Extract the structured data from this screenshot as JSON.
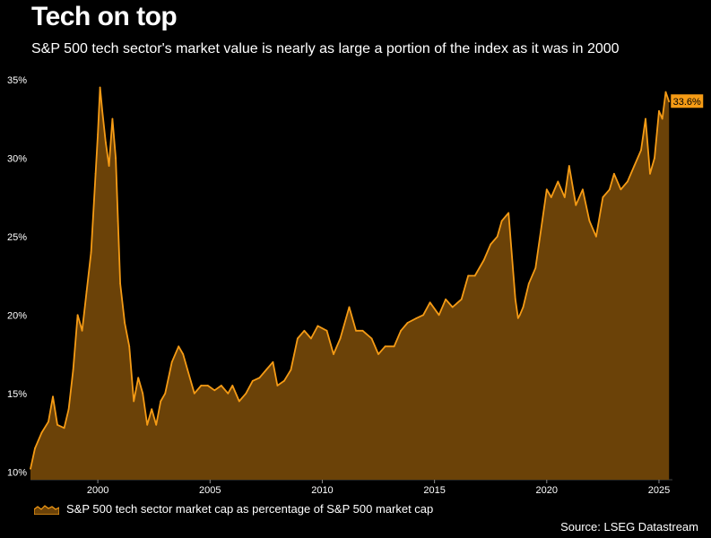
{
  "title": "Tech on top",
  "subtitle": "S&P 500 tech sector's market value is nearly as large a portion of the index as it was in 2000",
  "source": "Source: LSEG Datastream",
  "colors": {
    "line": "#f59b15",
    "fill": "#6b4208",
    "background": "#000000",
    "label_bg": "#f59b15"
  },
  "chart_data": {
    "type": "area",
    "title": "Tech on top",
    "subtitle": "S&P 500 tech sector's market value is nearly as large a portion of the index as it was in 2000",
    "xlim": [
      1997.0,
      2025.6
    ],
    "ylim": [
      9.5,
      35.5
    ],
    "y_ticks": [
      10,
      15,
      20,
      25,
      30,
      35
    ],
    "y_tick_labels": [
      "10%",
      "15%",
      "20%",
      "25%",
      "30%",
      "35%"
    ],
    "x_ticks": [
      2000,
      2005,
      2010,
      2015,
      2020,
      2025
    ],
    "x_tick_labels": [
      "2000",
      "2005",
      "2010",
      "2015",
      "2020",
      "2025"
    ],
    "grid": false,
    "legend": "bottom-left",
    "end_label": "33.6%",
    "series": [
      {
        "name": "S&P 500 tech sector market cap as percentage of S&P 500 market cap",
        "x": [
          1997.0,
          1997.2,
          1997.5,
          1997.8,
          1998.0,
          1998.2,
          1998.5,
          1998.7,
          1998.9,
          1999.1,
          1999.3,
          1999.5,
          1999.7,
          1999.9,
          2000.0,
          2000.1,
          2000.2,
          2000.35,
          2000.5,
          2000.65,
          2000.8,
          2000.9,
          2001.0,
          2001.2,
          2001.4,
          2001.6,
          2001.8,
          2002.0,
          2002.2,
          2002.4,
          2002.6,
          2002.8,
          2003.0,
          2003.3,
          2003.6,
          2003.8,
          2004.0,
          2004.3,
          2004.6,
          2004.9,
          2005.2,
          2005.5,
          2005.8,
          2006.0,
          2006.3,
          2006.6,
          2006.9,
          2007.2,
          2007.5,
          2007.8,
          2008.0,
          2008.3,
          2008.6,
          2008.9,
          2009.2,
          2009.5,
          2009.8,
          2010.2,
          2010.5,
          2010.8,
          2011.2,
          2011.5,
          2011.8,
          2012.2,
          2012.5,
          2012.8,
          2013.2,
          2013.5,
          2013.8,
          2014.2,
          2014.5,
          2014.8,
          2015.2,
          2015.5,
          2015.8,
          2016.2,
          2016.5,
          2016.8,
          2017.2,
          2017.5,
          2017.8,
          2018.0,
          2018.3,
          2018.6,
          2018.72,
          2018.8,
          2018.95,
          2019.2,
          2019.5,
          2019.8,
          2020.0,
          2020.2,
          2020.5,
          2020.8,
          2021.0,
          2021.3,
          2021.6,
          2021.9,
          2022.2,
          2022.5,
          2022.8,
          2023.0,
          2023.3,
          2023.6,
          2023.9,
          2024.2,
          2024.4,
          2024.6,
          2024.8,
          2025.0,
          2025.15,
          2025.3,
          2025.45
        ],
        "y": [
          10.2,
          11.5,
          12.5,
          13.2,
          14.8,
          13.0,
          12.8,
          14.0,
          16.5,
          20.0,
          19.0,
          21.5,
          24.0,
          29.0,
          31.5,
          34.5,
          33.0,
          31.0,
          29.5,
          32.5,
          30.0,
          26.0,
          22.0,
          19.5,
          18.0,
          14.5,
          16.0,
          15.0,
          13.0,
          14.0,
          13.0,
          14.5,
          15.0,
          17.0,
          18.0,
          17.5,
          16.5,
          15.0,
          15.5,
          15.5,
          15.2,
          15.5,
          15.0,
          15.5,
          14.5,
          15.0,
          15.8,
          16.0,
          16.5,
          17.0,
          15.5,
          15.8,
          16.5,
          18.5,
          19.0,
          18.5,
          19.3,
          19.0,
          17.5,
          18.5,
          20.5,
          19.0,
          19.0,
          18.5,
          17.5,
          18.0,
          18.0,
          19.0,
          19.5,
          19.8,
          20.0,
          20.8,
          20.0,
          21.0,
          20.5,
          21.0,
          22.5,
          22.5,
          23.5,
          24.5,
          25.0,
          26.0,
          26.5,
          21.0,
          19.8,
          20.0,
          20.5,
          22.0,
          23.0,
          26.0,
          28.0,
          27.5,
          28.5,
          27.5,
          29.5,
          27.0,
          28.0,
          26.0,
          25.0,
          27.5,
          28.0,
          29.0,
          28.0,
          28.5,
          29.5,
          30.5,
          32.5,
          29.0,
          30.0,
          33.0,
          32.5,
          34.2,
          33.6
        ]
      }
    ]
  }
}
